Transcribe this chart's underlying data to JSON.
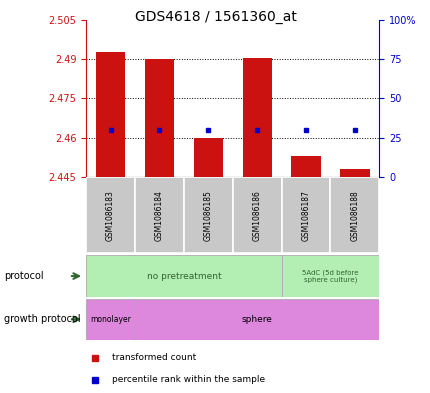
{
  "title": "GDS4618 / 1561360_at",
  "samples": [
    "GSM1086183",
    "GSM1086184",
    "GSM1086185",
    "GSM1086186",
    "GSM1086187",
    "GSM1086188"
  ],
  "bar_values": [
    2.4925,
    2.49,
    2.46,
    2.4905,
    2.453,
    2.448
  ],
  "bar_bottom": 2.445,
  "percentile_values": [
    2.463,
    2.463,
    2.463,
    2.463,
    2.463,
    2.463
  ],
  "ylim_left": [
    2.445,
    2.505
  ],
  "ylim_right": [
    0,
    100
  ],
  "yticks_left": [
    2.445,
    2.46,
    2.475,
    2.49,
    2.505
  ],
  "ytick_labels_left": [
    "2.445",
    "2.46",
    "2.475",
    "2.49",
    "2.505"
  ],
  "yticks_right": [
    0,
    25,
    50,
    75,
    100
  ],
  "ytick_labels_right": [
    "0",
    "25",
    "50",
    "75",
    "100%"
  ],
  "bar_color": "#cc1111",
  "dot_color": "#0000cc",
  "plot_bg": "#ffffff",
  "protocol_label1": "no pretreatment",
  "protocol_label2": "5AdC (5d before\nsphere culture)",
  "protocol_color": "#b3eeb3",
  "growth_color": "#dd88dd",
  "sample_bg": "#c8c8c8",
  "legend_red": "transformed count",
  "legend_blue": "percentile rank within the sample",
  "title_fontsize": 10,
  "tick_fontsize": 7
}
